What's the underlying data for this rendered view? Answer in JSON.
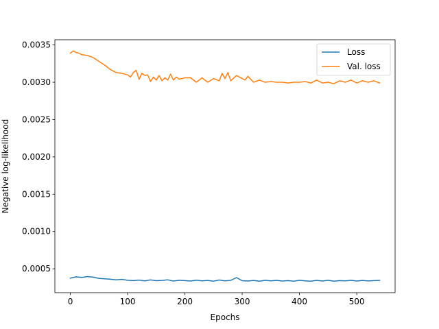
{
  "chart_data": {
    "type": "line",
    "title": "",
    "xlabel": "Epochs",
    "ylabel": "Negative log-likelihood",
    "xlim": [
      -27,
      567
    ],
    "ylim": [
      0.00018,
      0.00357
    ],
    "xticks": [
      0,
      100,
      200,
      300,
      400,
      500
    ],
    "xtick_labels": [
      "0",
      "100",
      "200",
      "300",
      "400",
      "500"
    ],
    "yticks": [
      0.0005,
      0.001,
      0.0015,
      0.002,
      0.0025,
      0.003,
      0.0035
    ],
    "ytick_labels": [
      "0.0005",
      "0.0010",
      "0.0015",
      "0.0020",
      "0.0025",
      "0.0030",
      "0.0035"
    ],
    "grid": false,
    "legend_position": "top-right",
    "series": [
      {
        "name": "Loss",
        "color": "#1f77b4",
        "x": [
          0,
          10,
          20,
          30,
          40,
          50,
          60,
          70,
          80,
          90,
          100,
          110,
          120,
          130,
          140,
          150,
          160,
          170,
          180,
          190,
          200,
          210,
          220,
          230,
          240,
          250,
          260,
          270,
          280,
          290,
          300,
          310,
          320,
          330,
          340,
          350,
          360,
          370,
          380,
          390,
          400,
          410,
          420,
          430,
          440,
          450,
          460,
          470,
          480,
          490,
          500,
          510,
          520,
          530,
          540
        ],
        "y": [
          0.000375,
          0.000392,
          0.000385,
          0.000396,
          0.000388,
          0.000372,
          0.000366,
          0.00036,
          0.000352,
          0.000358,
          0.000346,
          0.000342,
          0.000349,
          0.000338,
          0.000351,
          0.000341,
          0.000344,
          0.000352,
          0.000336,
          0.000346,
          0.000342,
          0.000336,
          0.000348,
          0.000339,
          0.000344,
          0.000334,
          0.00035,
          0.000338,
          0.000345,
          0.000382,
          0.000341,
          0.000336,
          0.000344,
          0.000333,
          0.000346,
          0.000338,
          0.000345,
          0.000336,
          0.000342,
          0.000334,
          0.000346,
          0.000338,
          0.000333,
          0.000345,
          0.000336,
          0.000346,
          0.000333,
          0.000342,
          0.000338,
          0.000346,
          0.000336,
          0.000344,
          0.000337,
          0.000342,
          0.000345
        ]
      },
      {
        "name": "Val. loss",
        "color": "#ff7f0e",
        "x": [
          0,
          5,
          10,
          15,
          20,
          30,
          40,
          50,
          60,
          70,
          80,
          90,
          100,
          105,
          110,
          115,
          120,
          125,
          130,
          135,
          140,
          145,
          150,
          155,
          160,
          165,
          170,
          175,
          180,
          185,
          190,
          200,
          210,
          220,
          230,
          240,
          250,
          260,
          265,
          270,
          275,
          280,
          290,
          300,
          305,
          310,
          320,
          330,
          340,
          350,
          360,
          370,
          380,
          390,
          400,
          410,
          420,
          430,
          440,
          450,
          460,
          470,
          480,
          490,
          500,
          510,
          520,
          530,
          540
        ],
        "y": [
          0.00339,
          0.00342,
          0.0034,
          0.00339,
          0.00337,
          0.00336,
          0.00333,
          0.00328,
          0.00323,
          0.00317,
          0.00313,
          0.00312,
          0.0031,
          0.00307,
          0.00313,
          0.00316,
          0.00304,
          0.00312,
          0.00309,
          0.0031,
          0.00301,
          0.00307,
          0.00303,
          0.00309,
          0.00302,
          0.00306,
          0.00303,
          0.00311,
          0.00303,
          0.00307,
          0.00304,
          0.00306,
          0.00306,
          0.003,
          0.00306,
          0.003,
          0.00305,
          0.00302,
          0.00312,
          0.00305,
          0.00313,
          0.00302,
          0.00309,
          0.00305,
          0.00303,
          0.00308,
          0.003,
          0.00303,
          0.003,
          0.00301,
          0.003,
          0.003,
          0.00299,
          0.003,
          0.003,
          0.00301,
          0.00299,
          0.00303,
          0.00299,
          0.003,
          0.00298,
          0.00302,
          0.003,
          0.00303,
          0.00299,
          0.00302,
          0.003,
          0.00302,
          0.00299
        ]
      }
    ]
  }
}
